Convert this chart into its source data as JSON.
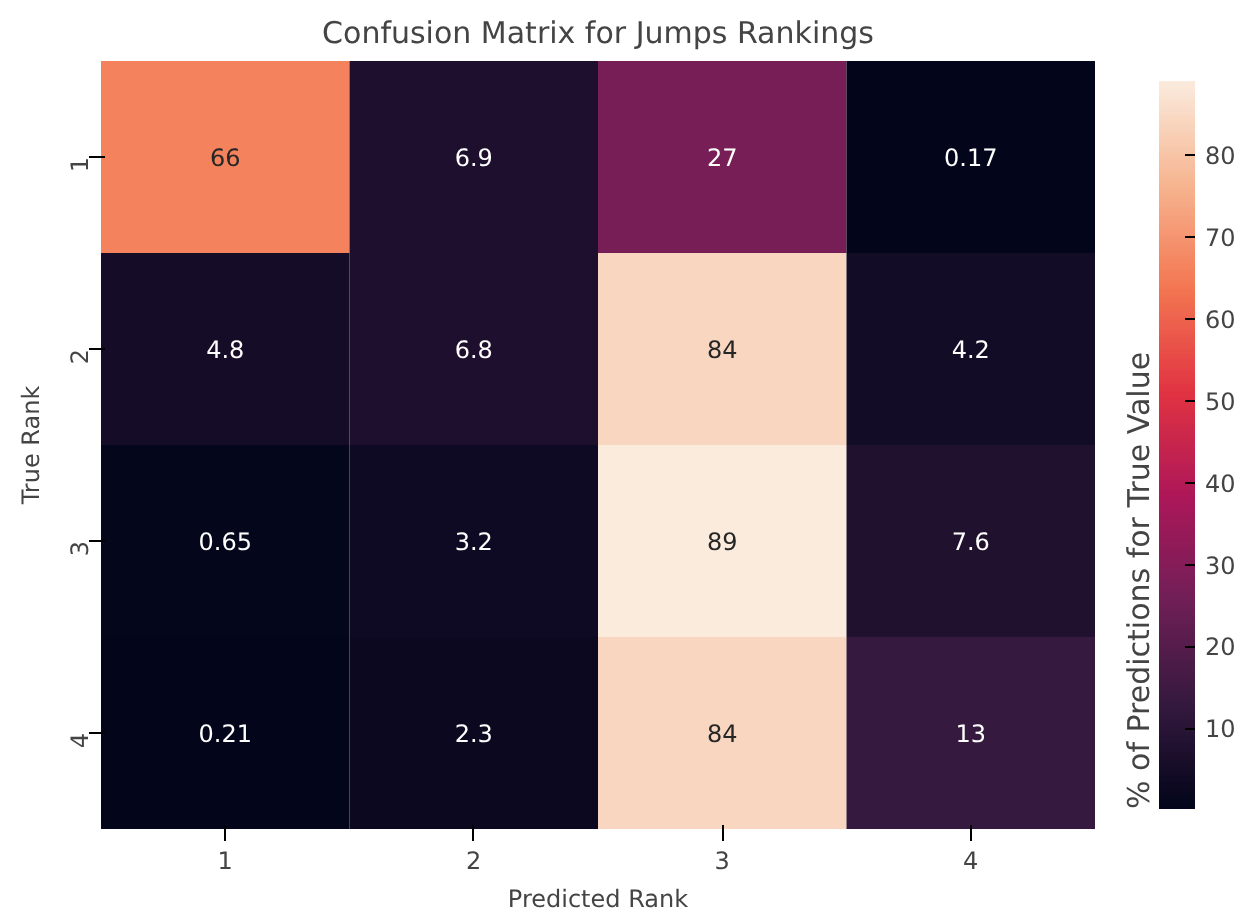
{
  "chart_data": {
    "type": "heatmap",
    "title": "Confusion Matrix for Jumps Rankings",
    "xlabel": "Predicted Rank",
    "ylabel": "True Rank",
    "clabel": "% of Predictions for True Value",
    "categories": [
      "1",
      "2",
      "3",
      "4"
    ],
    "y_categories": [
      "1",
      "2",
      "3",
      "4"
    ],
    "cells": [
      [
        66,
        6.9,
        27,
        0.17
      ],
      [
        4.8,
        6.8,
        84,
        4.2
      ],
      [
        0.65,
        3.2,
        89,
        7.6
      ],
      [
        0.21,
        2.3,
        84,
        13
      ]
    ],
    "data_labels": true,
    "clim": [
      0.17,
      89
    ],
    "cticks": [
      10,
      20,
      30,
      40,
      50,
      60,
      70,
      80
    ]
  }
}
